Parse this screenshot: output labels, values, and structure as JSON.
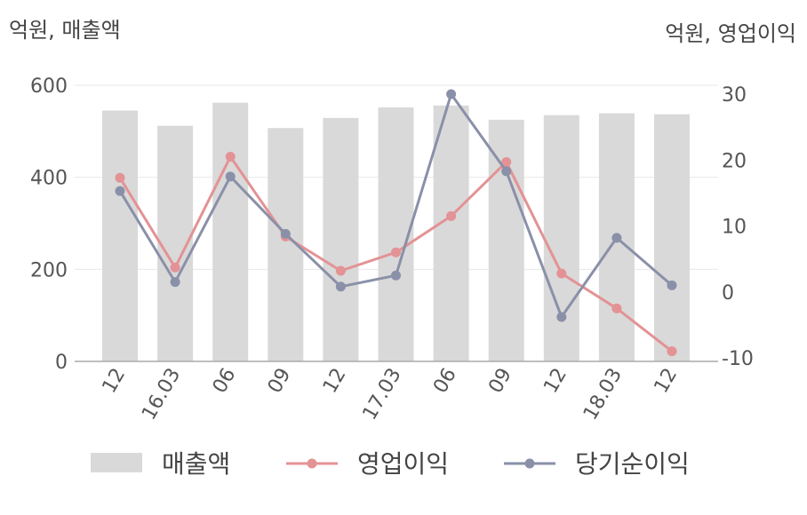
{
  "chart_data": {
    "type": "bar+line",
    "unit_left": "억원, 매출액",
    "unit_right": "억원, 영업이익",
    "categories": [
      "12",
      "16.03",
      "06",
      "09",
      "12",
      "17.03",
      "06",
      "09",
      "12",
      "18.03",
      "12"
    ],
    "y_left": {
      "ticks": [
        "600",
        "400",
        "200",
        "0"
      ],
      "min": 0,
      "max": 600
    },
    "y_right": {
      "ticks": [
        "30",
        "20",
        "10",
        "0",
        "-10"
      ],
      "min": -10,
      "max": 30
    },
    "series": [
      {
        "name": "매출액",
        "kind": "bar",
        "axis": "left",
        "color": "#d9d9d9",
        "values": [
          545,
          512,
          562,
          507,
          529,
          552,
          556,
          525,
          535,
          539,
          537
        ]
      },
      {
        "name": "영업이익",
        "kind": "line",
        "axis": "right",
        "color": "#e39295",
        "values": [
          17.3,
          3.7,
          20.5,
          8.4,
          3.2,
          6.0,
          11.5,
          19.7,
          2.8,
          -2.5,
          -9.0
        ]
      },
      {
        "name": "당기순이익",
        "kind": "line",
        "axis": "right",
        "color": "#8a90a8",
        "values": [
          15.3,
          1.5,
          17.5,
          8.8,
          0.8,
          2.5,
          30.0,
          18.3,
          -3.8,
          8.2,
          1.0
        ]
      }
    ],
    "grid": true,
    "legend": "bottom"
  }
}
